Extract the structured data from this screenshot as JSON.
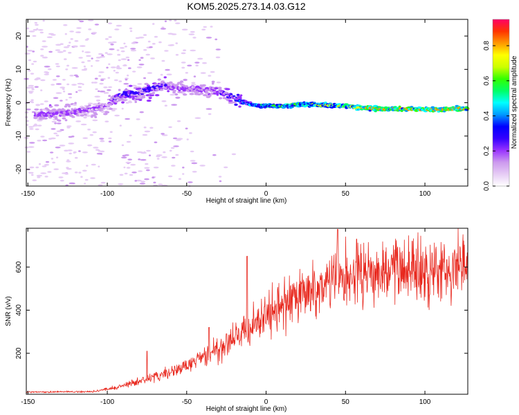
{
  "title": "KOM5.2025.273.14.03.G12",
  "chart_data": [
    {
      "type": "heatmap",
      "name": "spectrogram",
      "xlabel": "Height of straight line (km)",
      "ylabel": "Frequency (Hz)",
      "xlim": [
        -151,
        127
      ],
      "ylim": [
        -25,
        25
      ],
      "xticks": [
        -150,
        -100,
        -50,
        0,
        50,
        100
      ],
      "yticks": [
        20,
        10,
        0,
        -10,
        -20
      ],
      "colorbar": {
        "label": "Normalized spectral amplitude",
        "range": [
          0,
          0.95
        ],
        "ticks": [
          0.0,
          0.2,
          0.4,
          0.6,
          0.8
        ],
        "colormap": [
          "#ffffff",
          "#e6ccf5",
          "#cc99ee",
          "#9933ff",
          "#3300ff",
          "#0000ff",
          "#0099ff",
          "#00ffff",
          "#00ff66",
          "#33ff00",
          "#ccff00",
          "#ffff00",
          "#ff9900",
          "#ff3300",
          "#ff0066"
        ]
      },
      "ridge": [
        {
          "x": -140,
          "f": -3.5,
          "a": 0.22
        },
        {
          "x": -130,
          "f": -3.0,
          "a": 0.22
        },
        {
          "x": -120,
          "f": -2.8,
          "a": 0.2
        },
        {
          "x": -110,
          "f": -2.0,
          "a": 0.18
        },
        {
          "x": -100,
          "f": -1.0,
          "a": 0.18
        },
        {
          "x": -95,
          "f": 1.5,
          "a": 0.25
        },
        {
          "x": -88,
          "f": 2.5,
          "a": 0.3
        },
        {
          "x": -80,
          "f": 3.0,
          "a": 0.25
        },
        {
          "x": -72,
          "f": 4.0,
          "a": 0.28
        },
        {
          "x": -65,
          "f": 5.0,
          "a": 0.25
        },
        {
          "x": -55,
          "f": 4.5,
          "a": 0.2
        },
        {
          "x": -45,
          "f": 4.0,
          "a": 0.2
        },
        {
          "x": -35,
          "f": 4.0,
          "a": 0.22
        },
        {
          "x": -25,
          "f": 2.5,
          "a": 0.25
        },
        {
          "x": -18,
          "f": 1.0,
          "a": 0.35
        },
        {
          "x": -10,
          "f": -0.5,
          "a": 0.45
        },
        {
          "x": 0,
          "f": -1.0,
          "a": 0.55
        },
        {
          "x": 10,
          "f": -1.0,
          "a": 0.6
        },
        {
          "x": 20,
          "f": -0.5,
          "a": 0.62
        },
        {
          "x": 30,
          "f": -0.6,
          "a": 0.65
        },
        {
          "x": 40,
          "f": -0.8,
          "a": 0.65
        },
        {
          "x": 50,
          "f": -1.0,
          "a": 0.7
        },
        {
          "x": 60,
          "f": -1.5,
          "a": 0.78
        },
        {
          "x": 70,
          "f": -1.8,
          "a": 0.8
        },
        {
          "x": 80,
          "f": -1.8,
          "a": 0.82
        },
        {
          "x": 90,
          "f": -2.0,
          "a": 0.8
        },
        {
          "x": 100,
          "f": -2.0,
          "a": 0.82
        },
        {
          "x": 110,
          "f": -2.0,
          "a": 0.82
        },
        {
          "x": 120,
          "f": -1.8,
          "a": 0.8
        },
        {
          "x": 127,
          "f": -1.8,
          "a": 0.8
        }
      ]
    },
    {
      "type": "line",
      "name": "snr",
      "xlabel": "Height of straight line (km)",
      "ylabel": "SNR (v/v)",
      "xlim": [
        -151,
        127
      ],
      "ylim": [
        10,
        780
      ],
      "xticks": [
        -150,
        -100,
        -50,
        0,
        50,
        100
      ],
      "yticks": [
        200,
        400,
        600
      ],
      "color": "#e8281e",
      "trend": [
        {
          "x": -151,
          "y": 20
        },
        {
          "x": -110,
          "y": 22
        },
        {
          "x": -95,
          "y": 40
        },
        {
          "x": -80,
          "y": 70
        },
        {
          "x": -65,
          "y": 100
        },
        {
          "x": -50,
          "y": 140
        },
        {
          "x": -35,
          "y": 200
        },
        {
          "x": -25,
          "y": 240
        },
        {
          "x": -15,
          "y": 290
        },
        {
          "x": -5,
          "y": 350
        },
        {
          "x": 10,
          "y": 420
        },
        {
          "x": 25,
          "y": 480
        },
        {
          "x": 40,
          "y": 530
        },
        {
          "x": 55,
          "y": 560
        },
        {
          "x": 70,
          "y": 575
        },
        {
          "x": 90,
          "y": 590
        },
        {
          "x": 110,
          "y": 600
        },
        {
          "x": 127,
          "y": 605
        }
      ],
      "spikes": [
        {
          "x": -75,
          "y": 210
        },
        {
          "x": -36,
          "y": 320
        },
        {
          "x": -25,
          "y": 290
        },
        {
          "x": -12,
          "y": 650
        },
        {
          "x": 45,
          "y": 775
        },
        {
          "x": 57,
          "y": 730
        },
        {
          "x": 92,
          "y": 720
        }
      ]
    }
  ]
}
